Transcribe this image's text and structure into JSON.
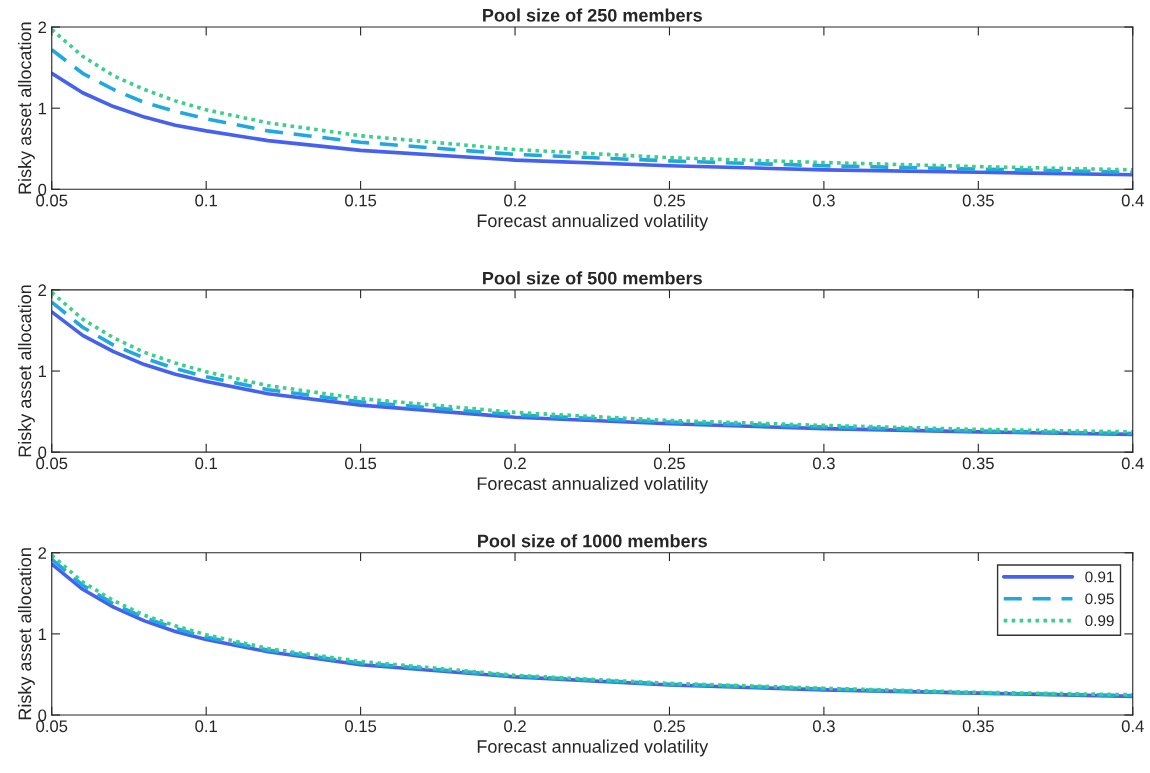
{
  "chart_data": [
    {
      "type": "line",
      "title": "Pool size of 250 members",
      "xlabel": "Forecast annualized volatility",
      "ylabel": "Risky asset allocation",
      "x": [
        0.05,
        0.06,
        0.07,
        0.08,
        0.09,
        0.1,
        0.12,
        0.15,
        0.2,
        0.25,
        0.3,
        0.35,
        0.4
      ],
      "xlim": [
        0.05,
        0.4
      ],
      "xticks": [
        0.05,
        0.1,
        0.15,
        0.2,
        0.25,
        0.3,
        0.35,
        0.4
      ],
      "ylim": [
        0,
        2
      ],
      "yticks": [
        0,
        1,
        2
      ],
      "grid": false,
      "legend": false,
      "series": [
        {
          "color": "#4661f0",
          "line_style": "solid",
          "values": [
            1.43,
            1.19,
            1.02,
            0.89,
            0.79,
            0.72,
            0.6,
            0.48,
            0.36,
            0.29,
            0.24,
            0.21,
            0.18
          ]
        },
        {
          "color": "#1fa9e0",
          "line_style": "dashed",
          "values": [
            1.72,
            1.43,
            1.23,
            1.07,
            0.96,
            0.87,
            0.72,
            0.58,
            0.43,
            0.35,
            0.29,
            0.25,
            0.21
          ]
        },
        {
          "color": "#3ccf8c",
          "line_style": "dotted",
          "values": [
            1.97,
            1.64,
            1.4,
            1.23,
            1.09,
            0.98,
            0.82,
            0.66,
            0.49,
            0.39,
            0.33,
            0.28,
            0.24
          ]
        }
      ]
    },
    {
      "type": "line",
      "title": "Pool size of 500 members",
      "xlabel": "Forecast annualized volatility",
      "ylabel": "Risky asset allocation",
      "x": [
        0.05,
        0.06,
        0.07,
        0.08,
        0.09,
        0.1,
        0.12,
        0.15,
        0.2,
        0.25,
        0.3,
        0.35,
        0.4
      ],
      "xlim": [
        0.05,
        0.4
      ],
      "xticks": [
        0.05,
        0.1,
        0.15,
        0.2,
        0.25,
        0.3,
        0.35,
        0.4
      ],
      "ylim": [
        0,
        2
      ],
      "yticks": [
        0,
        1,
        2
      ],
      "grid": false,
      "legend": false,
      "series": [
        {
          "color": "#4661f0",
          "line_style": "solid",
          "values": [
            1.73,
            1.44,
            1.24,
            1.08,
            0.96,
            0.87,
            0.72,
            0.58,
            0.43,
            0.35,
            0.29,
            0.25,
            0.22
          ]
        },
        {
          "color": "#1fa9e0",
          "line_style": "dashed",
          "values": [
            1.85,
            1.54,
            1.32,
            1.16,
            1.03,
            0.93,
            0.77,
            0.62,
            0.46,
            0.37,
            0.31,
            0.26,
            0.23
          ]
        },
        {
          "color": "#3ccf8c",
          "line_style": "dotted",
          "values": [
            1.97,
            1.64,
            1.41,
            1.23,
            1.1,
            0.99,
            0.82,
            0.66,
            0.49,
            0.39,
            0.33,
            0.28,
            0.25
          ]
        }
      ]
    },
    {
      "type": "line",
      "title": "Pool size of 1000 members",
      "xlabel": "Forecast annualized volatility",
      "ylabel": "Risky asset allocation",
      "x": [
        0.05,
        0.06,
        0.07,
        0.08,
        0.09,
        0.1,
        0.12,
        0.15,
        0.2,
        0.25,
        0.3,
        0.35,
        0.4
      ],
      "xlim": [
        0.05,
        0.4
      ],
      "xticks": [
        0.05,
        0.1,
        0.15,
        0.2,
        0.25,
        0.3,
        0.35,
        0.4
      ],
      "ylim": [
        0,
        2
      ],
      "yticks": [
        0,
        1,
        2
      ],
      "grid": false,
      "legend": "top right",
      "series": [
        {
          "name": "0.91",
          "color": "#4661f0",
          "line_style": "solid",
          "values": [
            1.86,
            1.55,
            1.33,
            1.16,
            1.03,
            0.93,
            0.78,
            0.62,
            0.47,
            0.37,
            0.31,
            0.27,
            0.23
          ]
        },
        {
          "name": "0.95",
          "color": "#1fa9e0",
          "line_style": "dashed",
          "values": [
            1.92,
            1.6,
            1.37,
            1.2,
            1.07,
            0.96,
            0.8,
            0.64,
            0.48,
            0.38,
            0.32,
            0.27,
            0.24
          ]
        },
        {
          "name": "0.99",
          "color": "#3ccf8c",
          "line_style": "dotted",
          "values": [
            1.97,
            1.64,
            1.41,
            1.23,
            1.1,
            0.99,
            0.82,
            0.66,
            0.49,
            0.39,
            0.33,
            0.28,
            0.25
          ]
        }
      ]
    }
  ]
}
